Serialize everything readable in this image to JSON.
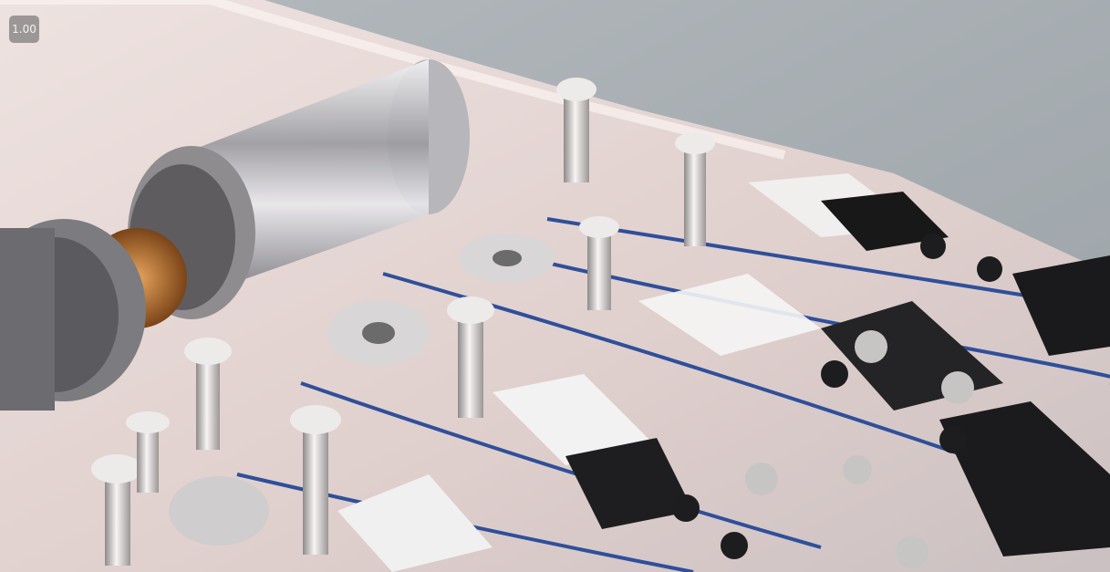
{
  "overlay": {
    "playback_speed": "1.00"
  },
  "colors": {
    "background": "#a9b0b4",
    "housing": "#e9d9d6",
    "cable": "#2f4f9a",
    "metal": "#c9c9cd",
    "copper": "#c77a35",
    "dark_plate": "#1c1c1e"
  }
}
